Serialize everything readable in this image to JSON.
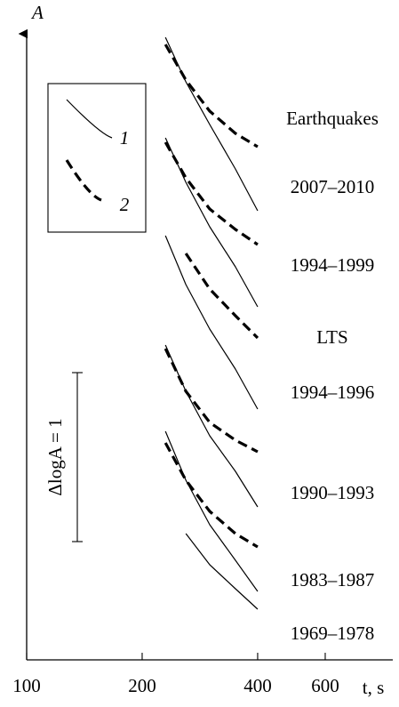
{
  "chart_data": {
    "type": "line",
    "ylabel": "A",
    "xlabel": "t, s",
    "xscale": "log",
    "xlim": [
      100,
      900
    ],
    "xticks": [
      100,
      200,
      400,
      600
    ],
    "ylim": [
      0,
      700
    ],
    "x": [
      230,
      260,
      300,
      350,
      400
    ],
    "series": [
      {
        "dash": false,
        "color": "#000",
        "values": [
          700,
          650,
          602,
          552,
          505
        ]
      },
      {
        "dash": true,
        "color": "#000",
        "values": [
          692,
          652,
          617,
          592,
          577
        ]
      },
      {
        "dash": false,
        "color": "#000",
        "values": [
          587,
          537,
          487,
          442,
          397
        ]
      },
      {
        "dash": true,
        "color": "#000",
        "values": [
          582,
          542,
          507,
          484,
          467
        ]
      },
      {
        "dash": false,
        "color": "#000",
        "values": [
          477,
          422,
          372,
          327,
          282
        ]
      },
      {
        "dash": true,
        "color": "#000",
        "values": [
          null,
          457,
          417,
          387,
          362
        ]
      },
      {
        "dash": false,
        "color": "#000",
        "values": [
          354,
          302,
          252,
          212,
          172
        ]
      },
      {
        "dash": true,
        "color": "#000",
        "values": [
          350,
          302,
          267,
          247,
          234
        ]
      },
      {
        "dash": false,
        "color": "#000",
        "values": [
          257,
          202,
          152,
          112,
          77
        ]
      },
      {
        "dash": true,
        "color": "#000",
        "values": [
          244,
          202,
          167,
          142,
          127
        ]
      },
      {
        "dash": false,
        "color": "#000",
        "values": [
          null,
          142,
          107,
          80,
          57
        ]
      }
    ],
    "legend": [
      {
        "label": "1",
        "dash": false
      },
      {
        "label": "2",
        "dash": true
      }
    ],
    "annotations": [
      "Earthquakes",
      "2007–2010",
      "1994–1999",
      "LTS",
      "1994–1996",
      "1990–1993",
      "1983–1987",
      "1969–1978"
    ],
    "scale_bar_label": "ΔlogA = 1"
  }
}
